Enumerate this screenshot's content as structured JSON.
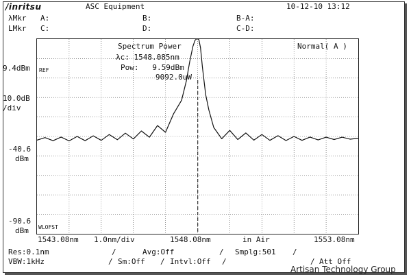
{
  "header": {
    "brand": "/inritsu",
    "equipment": "ASC Equipment",
    "datetime": "10-12-10 13:12"
  },
  "markers": {
    "lambda_label": "λMkr",
    "l_label": "LMkr",
    "a": "A:",
    "b": "B:",
    "ba": "B-A:",
    "c": "C:",
    "d": "D:",
    "cd": "C-D:"
  },
  "plot_header": {
    "title": "Spectrum Power",
    "lambda_c": "λc: 1548.085nm",
    "pow": "Pow:   9.59dBm",
    "power_uw": "9092.0uW",
    "mode": "Normal( A )"
  },
  "y_axis": {
    "ref_level": "9.4dBm",
    "ref_tag": "REF",
    "scale": "10.0dB",
    "scale_unit": "/div",
    "mid_value": "-40.6",
    "mid_unit": "dBm",
    "bottom_value": "-90.6",
    "bottom_unit": "dBm",
    "offset_tag": "WLOFST"
  },
  "x_axis": {
    "start": "1543.08nm",
    "span": "1.0nm/div",
    "center": "1548.08nm",
    "medium": "in Air",
    "stop": "1553.08nm"
  },
  "footer": {
    "res": "Res:0.1nm",
    "vbw": "VBW:1kHz",
    "avg": "Avg:Off",
    "sm": "Sm:Off",
    "intvl": "Intvl:Off",
    "smplg": "Smplg:501",
    "att": "Att Off"
  },
  "watermark": "Artisan Technology Group",
  "chart_data": {
    "type": "line",
    "x": [
      1543.08,
      1543.33,
      1543.58,
      1543.83,
      1544.08,
      1544.33,
      1544.58,
      1544.83,
      1545.08,
      1545.33,
      1545.58,
      1545.83,
      1546.08,
      1546.33,
      1546.58,
      1546.83,
      1547.08,
      1547.33,
      1547.58,
      1547.73,
      1547.83,
      1547.93,
      1548.0,
      1548.05,
      1548.085,
      1548.12,
      1548.17,
      1548.23,
      1548.33,
      1548.43,
      1548.58,
      1548.83,
      1549.08,
      1549.33,
      1549.58,
      1549.83,
      1550.08,
      1550.33,
      1550.58,
      1550.83,
      1551.08,
      1551.33,
      1551.58,
      1551.83,
      1552.08,
      1552.33,
      1552.58,
      1552.83,
      1553.08
    ],
    "y": [
      -42.5,
      -41.2,
      -42.8,
      -40.9,
      -42.9,
      -40.6,
      -42.8,
      -40.3,
      -42.6,
      -39.6,
      -42.3,
      -38.9,
      -41.9,
      -37.8,
      -41.0,
      -35.0,
      -38.5,
      -29.0,
      -22.0,
      -12.0,
      -2.5,
      5.5,
      8.8,
      9.5,
      9.59,
      9.0,
      5.0,
      -5.0,
      -19.0,
      -27.0,
      -36.0,
      -41.8,
      -37.5,
      -42.2,
      -38.8,
      -42.5,
      -39.6,
      -42.6,
      -40.2,
      -42.7,
      -40.6,
      -42.6,
      -40.9,
      -42.4,
      -41.0,
      -42.2,
      -41.0,
      -42.0,
      -41.5
    ],
    "title": "Spectrum Power",
    "xlabel": "",
    "ylabel": "",
    "xlim": [
      1543.08,
      1553.08
    ],
    "ylim": [
      -90.6,
      9.4
    ],
    "grid": true,
    "marker_x": 1548.085
  }
}
